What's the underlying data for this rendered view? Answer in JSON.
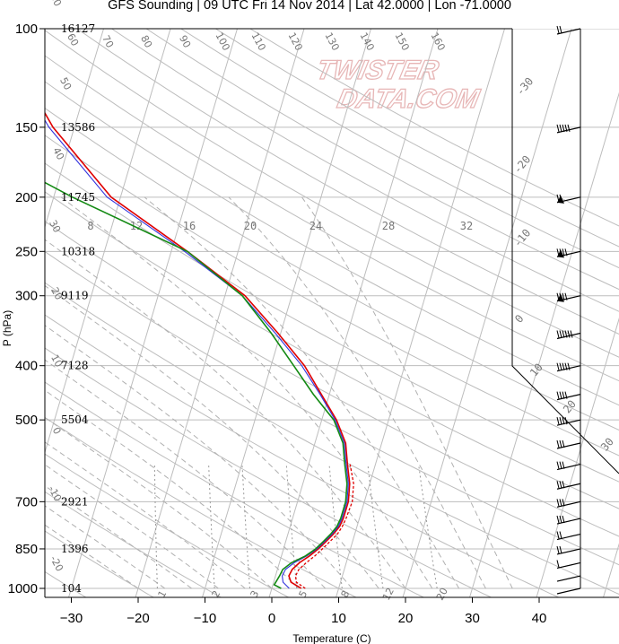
{
  "title": "GFS Sounding | 09 UTC Fri 14 Nov 2014 | Lat 42.0000 | Lon -71.0000",
  "watermark": [
    "TWISTER",
    "DATA.COM"
  ],
  "colors": {
    "temperature": "#e00000",
    "dewpoint": "#138a13",
    "virtual_temp": "#3333dd",
    "grid": "#bdbdbd"
  },
  "chart_data": {
    "type": "skew-t",
    "title": "GFS Sounding | 09 UTC Fri 14 Nov 2014 | Lat 42.0000 | Lon -71.0000",
    "xlabel": "Temperature (C)",
    "ylabel": "P (hPa)",
    "xlim": [
      -34,
      52
    ],
    "ylim": [
      1000,
      100
    ],
    "log_pressure_axis": true,
    "pressure_ticks": [
      100,
      150,
      200,
      250,
      300,
      400,
      500,
      700,
      850,
      1000
    ],
    "temperature_ticks": [
      -30,
      -20,
      -10,
      0,
      10,
      20,
      30,
      40
    ],
    "height_labels": [
      {
        "p": 100,
        "h": "16127"
      },
      {
        "p": 150,
        "h": "13586"
      },
      {
        "p": 200,
        "h": "11745"
      },
      {
        "p": 250,
        "h": "10318"
      },
      {
        "p": 300,
        "h": "9119"
      },
      {
        "p": 400,
        "h": "7128"
      },
      {
        "p": 500,
        "h": "5504"
      },
      {
        "p": 700,
        "h": "2921"
      },
      {
        "p": 850,
        "h": "1396"
      },
      {
        "p": 1000,
        "h": "104"
      }
    ],
    "isotherm_labels_left": [
      "60",
      "50",
      "40",
      "30",
      "20",
      "10",
      "0",
      "-10",
      "-20",
      "-30"
    ],
    "isotherm_labels_top": [
      "70",
      "80",
      "90",
      "100",
      "110",
      "120",
      "130",
      "140",
      "150",
      "160"
    ],
    "isotherm_labels_right": [
      "-30",
      "-20",
      "-10",
      "0",
      "10",
      "20",
      "30"
    ],
    "mixing_ratio_labels_top": [
      "8",
      "12",
      "16",
      "20",
      "24",
      "28",
      "32"
    ],
    "mixing_ratio_labels_bottom": [
      "1",
      "2",
      "3",
      "5",
      "8",
      "12",
      "20"
    ],
    "series": [
      {
        "name": "Temperature",
        "values": [
          [
            1000,
            4.4
          ],
          [
            975,
            2.6
          ],
          [
            950,
            2.0
          ],
          [
            925,
            2.2
          ],
          [
            900,
            3.0
          ],
          [
            875,
            4.2
          ],
          [
            850,
            5.2
          ],
          [
            825,
            6.0
          ],
          [
            800,
            6.8
          ],
          [
            775,
            7.4
          ],
          [
            750,
            7.6
          ],
          [
            700,
            7.6
          ],
          [
            650,
            7.0
          ],
          [
            600,
            5.8
          ],
          [
            550,
            4.6
          ],
          [
            500,
            2.2
          ],
          [
            450,
            -1.2
          ],
          [
            400,
            -5.0
          ],
          [
            350,
            -10.4
          ],
          [
            300,
            -17.0
          ],
          [
            250,
            -27.6
          ],
          [
            200,
            -41.4
          ],
          [
            150,
            -53.2
          ],
          [
            100,
            -66.0
          ]
        ]
      },
      {
        "name": "Temperature (dashed)",
        "values": [
          [
            1000,
            5.0
          ],
          [
            975,
            3.4
          ],
          [
            950,
            3.0
          ],
          [
            925,
            3.2
          ],
          [
            900,
            4.0
          ],
          [
            875,
            5.0
          ],
          [
            850,
            5.8
          ],
          [
            825,
            6.6
          ],
          [
            800,
            7.4
          ],
          [
            775,
            7.8
          ],
          [
            750,
            8.0
          ],
          [
            700,
            8.2
          ],
          [
            650,
            7.6
          ],
          [
            600,
            6.2
          ]
        ]
      },
      {
        "name": "Virtual temperature",
        "values": [
          [
            1000,
            2.6
          ],
          [
            975,
            1.4
          ],
          [
            950,
            1.0
          ],
          [
            925,
            1.2
          ],
          [
            900,
            2.2
          ],
          [
            875,
            3.8
          ],
          [
            850,
            5.0
          ],
          [
            825,
            5.8
          ],
          [
            800,
            6.6
          ],
          [
            775,
            7.2
          ],
          [
            750,
            7.4
          ],
          [
            700,
            7.4
          ],
          [
            650,
            6.8
          ],
          [
            600,
            5.6
          ],
          [
            550,
            4.4
          ],
          [
            500,
            2.0
          ],
          [
            450,
            -1.4
          ],
          [
            400,
            -5.4
          ],
          [
            350,
            -10.8
          ],
          [
            300,
            -17.4
          ],
          [
            250,
            -28.0
          ],
          [
            200,
            -42.0
          ],
          [
            150,
            -53.8
          ],
          [
            100,
            -66.8
          ]
        ]
      },
      {
        "name": "Dewpoint",
        "values": [
          [
            1000,
            1.4
          ],
          [
            985,
            0.2
          ],
          [
            950,
            0.6
          ],
          [
            925,
            0.8
          ],
          [
            900,
            1.8
          ],
          [
            875,
            3.6
          ],
          [
            850,
            4.8
          ],
          [
            825,
            5.6
          ],
          [
            800,
            6.4
          ],
          [
            775,
            7.0
          ],
          [
            750,
            7.2
          ],
          [
            700,
            7.2
          ],
          [
            650,
            6.6
          ],
          [
            600,
            5.4
          ],
          [
            550,
            4.2
          ],
          [
            500,
            1.8
          ],
          [
            450,
            -2.4
          ],
          [
            400,
            -6.6
          ],
          [
            350,
            -11.4
          ],
          [
            300,
            -17.4
          ],
          [
            250,
            -27.6
          ],
          [
            200,
            -47.2
          ],
          [
            150,
            -70.0
          ],
          [
            100,
            -88.0
          ]
        ]
      }
    ],
    "wind_barbs": [
      {
        "p": 100,
        "barbs": "2 full"
      },
      {
        "p": 150,
        "barbs": "5 full"
      },
      {
        "p": 200,
        "barbs": "pennant+2"
      },
      {
        "p": 250,
        "barbs": "pennant+4"
      },
      {
        "p": 300,
        "barbs": "pennant+4"
      },
      {
        "p": 350,
        "barbs": "6 full"
      },
      {
        "p": 400,
        "barbs": "5 full"
      },
      {
        "p": 450,
        "barbs": "4 full"
      },
      {
        "p": 500,
        "barbs": "4 full"
      },
      {
        "p": 550,
        "barbs": "3 full"
      },
      {
        "p": 600,
        "barbs": "3 full"
      },
      {
        "p": 650,
        "barbs": "3 full"
      },
      {
        "p": 700,
        "barbs": "3 full"
      },
      {
        "p": 750,
        "barbs": "3 full"
      },
      {
        "p": 800,
        "barbs": "2 full"
      },
      {
        "p": 850,
        "barbs": "2 full"
      },
      {
        "p": 900,
        "barbs": "1 full"
      },
      {
        "p": 950,
        "barbs": "calm-ish"
      },
      {
        "p": 1000,
        "barbs": "calm-ish"
      }
    ]
  }
}
